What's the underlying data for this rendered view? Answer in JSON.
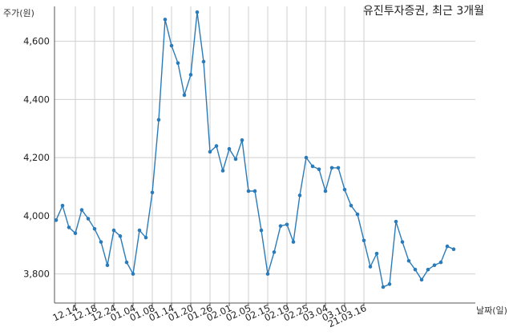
{
  "chart_data": {
    "type": "line",
    "title": "유진투자증권, 최근 3개월",
    "ylabel": "주가(원)",
    "xlabel": "날짜(일)",
    "ylim": [
      3700,
      4720
    ],
    "yticks": [
      3800,
      4000,
      4200,
      4400,
      4600
    ],
    "ytick_labels": [
      "3,800",
      "4,000",
      "4,200",
      "4,400",
      "4,600"
    ],
    "xtick_labels": [
      "12.14",
      "12.18",
      "12.24",
      "01.04",
      "01.08",
      "01.14",
      "01.20",
      "01.26",
      "02.01",
      "02.05",
      "02.15",
      "02.19",
      "02.25",
      "03.04",
      "03.10",
      "21.03.16"
    ],
    "xtick_index": [
      3,
      6,
      9,
      12,
      15,
      18,
      21,
      24,
      27,
      30,
      33,
      36,
      39,
      42,
      45,
      48
    ],
    "grid": true,
    "line_color": "#2b7bb9",
    "series": [
      {
        "values": [
          3985,
          4035,
          3960,
          3940,
          4020,
          3990,
          3955,
          3910,
          3830,
          3950,
          3930,
          3840,
          3800,
          3950,
          3925,
          4080,
          4330,
          4675,
          4585,
          4525,
          4415,
          4485,
          4700,
          4530,
          4220,
          4240,
          4155,
          4230,
          4195,
          4260,
          4085,
          4085,
          3950,
          3800,
          3875,
          3965,
          3970,
          3910,
          4070,
          4200,
          4170,
          4160,
          4085,
          4165,
          4165,
          4090,
          4035,
          4005,
          3915,
          3825,
          3870,
          3755,
          3765,
          3980,
          3910,
          3845,
          3815,
          3780,
          3815,
          3830,
          3840,
          3895,
          3885
        ]
      }
    ]
  }
}
